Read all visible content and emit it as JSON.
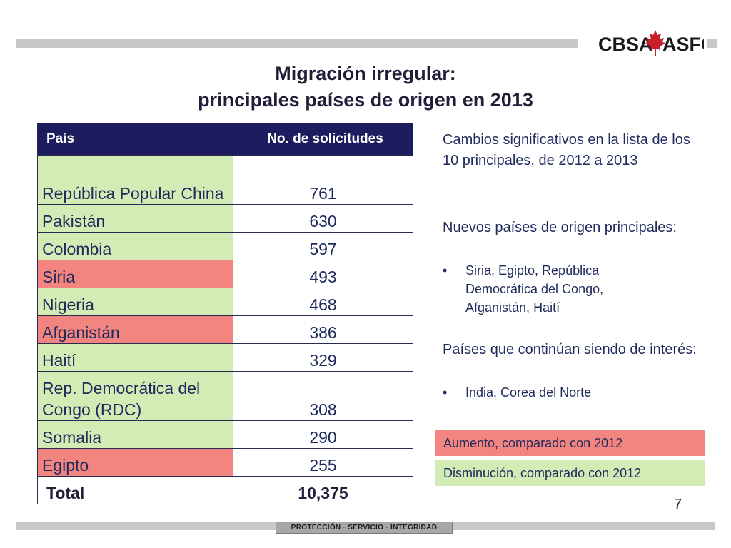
{
  "header": {
    "logo_left": "CBSA",
    "logo_right": "ASFC"
  },
  "title": {
    "line1": "Migración irregular:",
    "line2": "principales países de origen en 2013"
  },
  "table": {
    "col_country": "País",
    "col_requests": "No. de solicitudes",
    "rows": [
      {
        "country": "República Popular China",
        "value": "761",
        "status": "green"
      },
      {
        "country": "Pakistán",
        "value": "630",
        "status": "green"
      },
      {
        "country": "Colombia",
        "value": "597",
        "status": "green"
      },
      {
        "country": "Siria",
        "value": "493",
        "status": "red"
      },
      {
        "country": "Nigeria",
        "value": "468",
        "status": "green"
      },
      {
        "country": "Afganistán",
        "value": "386",
        "status": "red"
      },
      {
        "country": "Haití",
        "value": "329",
        "status": "green"
      },
      {
        "country": "Rep. Democrática del Congo (RDC)",
        "value": "308",
        "status": "green"
      },
      {
        "country": "Somalia",
        "value": "290",
        "status": "green"
      },
      {
        "country": "Egipto",
        "value": "255",
        "status": "red"
      }
    ],
    "total_label": "Total",
    "total_value": "10,375"
  },
  "side": {
    "intro": "Cambios significativos en la lista de los 10 principales, de 2012 a 2013",
    "new_heading": "Nuevos países de origen principales:",
    "new_bullet": "Siria, Egipto, República Democrática del Congo, Afganistán, Haití",
    "continuing_heading": "Países que continúan siendo de interés:",
    "continuing_bullet": "India, Corea del Norte",
    "bullet_char": "•"
  },
  "legend": {
    "increase": "Aumento, comparado con 2012",
    "decrease": "Disminución, comparado con 2012"
  },
  "colors": {
    "increase": "#f2857f",
    "decrease": "#d3ecb5",
    "header_bg": "#1c1c5e"
  },
  "page_number": "7",
  "footer": "PROTECCIÓN · SERVICIO · INTEGRIDAD"
}
